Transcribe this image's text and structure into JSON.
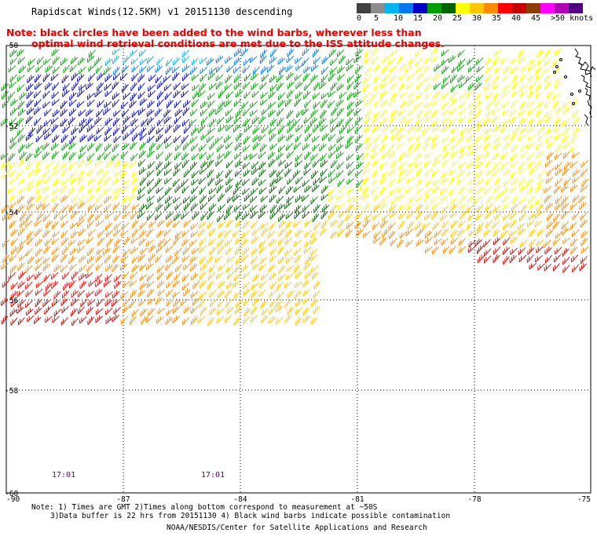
{
  "title": "Rapidscat Winds(12.5KM) v1 20151130 descending",
  "note_line1": "Note: black circles have been added to the wind barbs, wherever less than",
  "note_line2": "optimal wind retrieval conditions are met due to the ISS attitude changes.",
  "legend": {
    "colors": [
      "#404040",
      "#8c8c8c",
      "#00b4f0",
      "#0078f0",
      "#0000c8",
      "#00a000",
      "#006400",
      "#ffff00",
      "#ffc800",
      "#ff8c00",
      "#ff0000",
      "#c80000",
      "#8c3c00",
      "#ff00ff",
      "#b400b4",
      "#500080"
    ],
    "labels": [
      "0",
      "5",
      "10",
      "15",
      "20",
      "25",
      "30",
      "35",
      "40",
      "45",
      ">50 knots"
    ]
  },
  "map": {
    "lat_labels": [
      "-50",
      "-52",
      "-54",
      "-56",
      "-58",
      "-60"
    ],
    "lon_labels": [
      "-90",
      "-87",
      "-84",
      "-81",
      "-78",
      "-75"
    ],
    "time_labels": [
      "17:01",
      "17:01"
    ]
  },
  "footer": {
    "line1": "Note: 1) Times are GMT 2)Times along bottom correspond to measurement at ~50S",
    "line2": "3)Data buffer is 22 hrs from 20151130 4) Black wind barbs indicate possible contamination",
    "line3": "NOAA/NESDIS/Center for Satellite Applications and Research"
  }
}
